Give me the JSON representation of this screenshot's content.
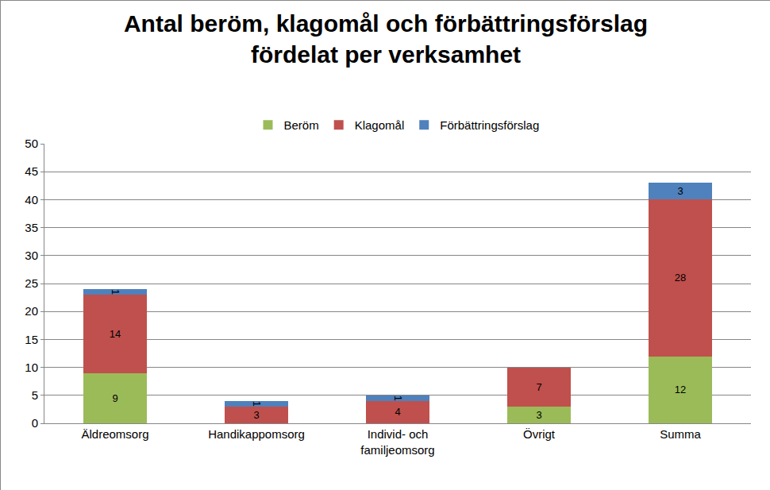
{
  "chart_data": {
    "type": "bar",
    "title": "Antal beröm, klagomål och förbättringsförslag fördelat per verksamhet",
    "categories": [
      "Äldreomsorg",
      "Handikappomsorg",
      "Individ- och familjeomsorg",
      "Övrigt",
      "Summa"
    ],
    "series": [
      {
        "name": "Beröm",
        "color": "#9bbb59",
        "values": [
          9,
          null,
          null,
          3,
          12
        ]
      },
      {
        "name": "Klagomål",
        "color": "#c0504d",
        "values": [
          14,
          3,
          4,
          7,
          28
        ]
      },
      {
        "name": "Förbättringsförslag",
        "color": "#4f81bd",
        "values": [
          1,
          1,
          1,
          null,
          3
        ]
      }
    ],
    "stacked": true,
    "data_labels": true,
    "ylim": [
      0,
      50
    ],
    "yticks": [
      0,
      5,
      10,
      15,
      20,
      25,
      30,
      35,
      40,
      45,
      50
    ],
    "grid": true,
    "legend": "top"
  }
}
